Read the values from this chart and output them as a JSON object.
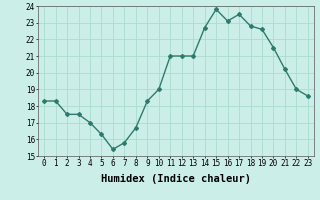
{
  "x": [
    0,
    1,
    2,
    3,
    4,
    5,
    6,
    7,
    8,
    9,
    10,
    11,
    12,
    13,
    14,
    15,
    16,
    17,
    18,
    19,
    20,
    21,
    22,
    23
  ],
  "y": [
    18.3,
    18.3,
    17.5,
    17.5,
    17.0,
    16.3,
    15.4,
    15.8,
    16.7,
    18.3,
    19.0,
    21.0,
    21.0,
    21.0,
    22.7,
    23.8,
    23.1,
    23.5,
    22.8,
    22.6,
    21.5,
    20.2,
    19.0,
    18.6
  ],
  "xlabel": "Humidex (Indice chaleur)",
  "ylim": [
    15,
    24
  ],
  "yticks": [
    15,
    16,
    17,
    18,
    19,
    20,
    21,
    22,
    23,
    24
  ],
  "xticks": [
    0,
    1,
    2,
    3,
    4,
    5,
    6,
    7,
    8,
    9,
    10,
    11,
    12,
    13,
    14,
    15,
    16,
    17,
    18,
    19,
    20,
    21,
    22,
    23
  ],
  "line_color": "#2e7b6e",
  "marker": "D",
  "marker_size": 2.0,
  "bg_color": "#cceee8",
  "grid_color": "#aaddcc",
  "tick_fontsize": 5.5,
  "xlabel_fontsize": 7.5,
  "line_width": 1.0
}
